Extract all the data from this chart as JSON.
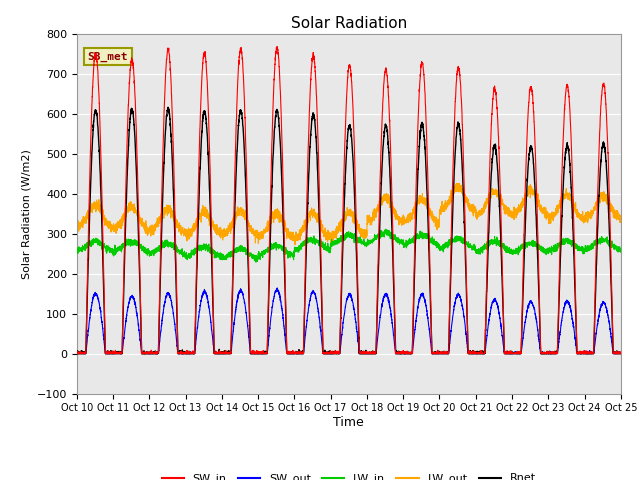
{
  "title": "Solar Radiation",
  "ylabel": "Solar Radiation (W/m2)",
  "xlabel": "Time",
  "ylim": [
    -100,
    800
  ],
  "yticks": [
    -100,
    0,
    100,
    200,
    300,
    400,
    500,
    600,
    700,
    800
  ],
  "n_days": 15,
  "pts_per_day": 288,
  "SW_in_peaks": [
    750,
    735,
    760,
    752,
    762,
    765,
    744,
    720,
    710,
    727,
    715,
    663,
    667,
    670,
    675
  ],
  "SW_out_peaks": [
    150,
    143,
    150,
    155,
    157,
    160,
    155,
    148,
    148,
    148,
    148,
    135,
    130,
    130,
    128
  ],
  "LW_in_base": [
    268,
    268,
    262,
    255,
    250,
    258,
    272,
    285,
    290,
    284,
    275,
    268,
    265,
    270,
    272
  ],
  "LW_out_base": [
    335,
    330,
    325,
    318,
    318,
    312,
    312,
    315,
    352,
    348,
    378,
    368,
    368,
    358,
    358
  ],
  "Rnet_peaks": [
    608,
    610,
    612,
    605,
    608,
    608,
    598,
    570,
    570,
    575,
    575,
    520,
    518,
    520,
    525
  ],
  "colors": {
    "SW_in": "#ff0000",
    "SW_out": "#0000ff",
    "LW_in": "#00cc00",
    "LW_out": "#ffa500",
    "Rnet": "#000000"
  },
  "bg_color": "#e8e8e8",
  "tick_labels": [
    "Oct 10",
    "Oct 11",
    "Oct 12",
    "Oct 13",
    "Oct 14",
    "Oct 15",
    "Oct 16",
    "Oct 17",
    "Oct 18",
    "Oct 19",
    "Oct 20",
    "Oct 21",
    "Oct 22",
    "Oct 23",
    "Oct 24",
    "Oct 25"
  ],
  "annotation": "SB_met",
  "annotation_color": "#8B0000",
  "annotation_bg": "#f0f0c0",
  "annotation_border": "#999900"
}
